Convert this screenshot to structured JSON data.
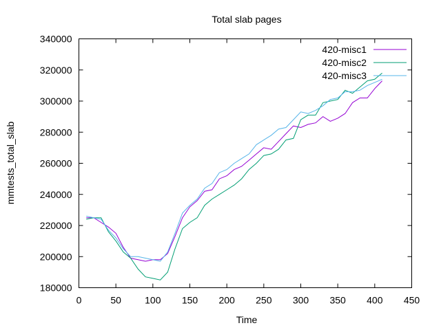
{
  "chart_data": {
    "type": "line",
    "title": "Total slab pages",
    "xlabel": "Time",
    "ylabel": "mmtests_total_slab",
    "xlim": [
      0,
      450
    ],
    "ylim": [
      180000,
      340000
    ],
    "xticks": [
      0,
      50,
      100,
      150,
      200,
      250,
      300,
      350,
      400,
      450
    ],
    "yticks": [
      180000,
      200000,
      220000,
      240000,
      260000,
      280000,
      300000,
      320000,
      340000
    ],
    "grid": false,
    "legend": "top-right",
    "x": [
      10,
      20,
      30,
      40,
      50,
      60,
      70,
      80,
      90,
      100,
      110,
      120,
      130,
      140,
      150,
      160,
      170,
      180,
      190,
      200,
      210,
      220,
      230,
      240,
      250,
      260,
      270,
      280,
      290,
      300,
      310,
      320,
      330,
      340,
      350,
      360,
      370,
      380,
      390,
      400,
      410
    ],
    "series": [
      {
        "name": "420-misc1",
        "color": "#9400d3",
        "values": [
          225000,
          225000,
          222000,
          219000,
          215000,
          206000,
          199000,
          198000,
          197000,
          198000,
          198000,
          202000,
          213000,
          225000,
          232000,
          236000,
          242000,
          243000,
          250000,
          252000,
          256000,
          258000,
          262000,
          266000,
          270000,
          269000,
          274000,
          279000,
          284000,
          283000,
          285000,
          286000,
          290000,
          287000,
          289000,
          292000,
          299000,
          302000,
          302000,
          308000,
          313000
        ]
      },
      {
        "name": "420-misc2",
        "color": "#009e73",
        "values": [
          224000,
          225000,
          225000,
          216000,
          210000,
          203000,
          199000,
          192000,
          187000,
          186000,
          185000,
          190000,
          205000,
          218000,
          222000,
          225000,
          233000,
          237000,
          240000,
          243000,
          246000,
          250000,
          256000,
          260000,
          265000,
          266000,
          269000,
          275000,
          276000,
          288000,
          291000,
          291000,
          299000,
          300000,
          301000,
          307000,
          305000,
          309000,
          313000,
          314000,
          318000
        ]
      },
      {
        "name": "420-misc3",
        "color": "#56b4e9",
        "values": [
          226000,
          225000,
          224000,
          217000,
          212000,
          205000,
          200000,
          200000,
          199000,
          198000,
          197000,
          203000,
          215000,
          228000,
          233000,
          237000,
          244000,
          247000,
          254000,
          256000,
          260000,
          263000,
          266000,
          272000,
          275000,
          278000,
          282000,
          283000,
          288000,
          293000,
          292000,
          294000,
          297000,
          301000,
          302000,
          306000,
          306000,
          307000,
          310000,
          312000,
          314000
        ]
      }
    ]
  }
}
